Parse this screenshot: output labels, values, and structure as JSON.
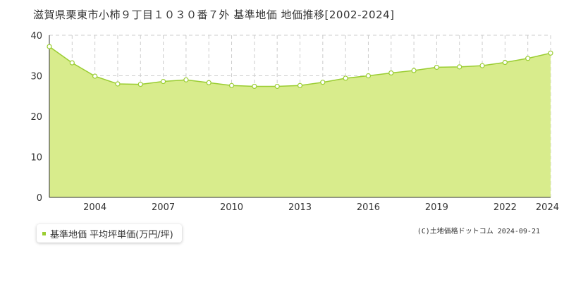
{
  "title": "滋賀県栗東市小柿９丁目１０３０番７外 基準地価 地価推移[2002-2024]",
  "legend_label": "基準地価 平均坪単価(万円/坪)",
  "credit": "(C)土地価格ドットコム 2024-09-21",
  "colors": {
    "line": "#9acd32",
    "fill": "#d8ec8c",
    "marker_fill": "#ffffff",
    "grid": "#cccccc",
    "axis": "#333333"
  },
  "chart_data": {
    "type": "area",
    "x": [
      2002,
      2003,
      2004,
      2005,
      2006,
      2007,
      2008,
      2009,
      2010,
      2011,
      2012,
      2013,
      2014,
      2015,
      2016,
      2017,
      2018,
      2019,
      2020,
      2021,
      2022,
      2023,
      2024
    ],
    "series": [
      {
        "name": "基準地価 平均坪単価(万円/坪)",
        "values": [
          37.2,
          33.2,
          29.9,
          28.0,
          27.9,
          28.6,
          29.0,
          28.3,
          27.6,
          27.4,
          27.4,
          27.6,
          28.4,
          29.4,
          30.0,
          30.7,
          31.3,
          32.1,
          32.2,
          32.5,
          33.3,
          34.3,
          35.6
        ]
      }
    ],
    "x_tick_labels": [
      "2004",
      "2007",
      "2010",
      "2013",
      "2016",
      "2019",
      "2022",
      "2024"
    ],
    "y_tick_labels": [
      "0",
      "10",
      "20",
      "30",
      "40"
    ],
    "xlim": [
      2002,
      2024
    ],
    "ylim": [
      0,
      40
    ],
    "grid": true,
    "legend_position": "bottom-left"
  }
}
